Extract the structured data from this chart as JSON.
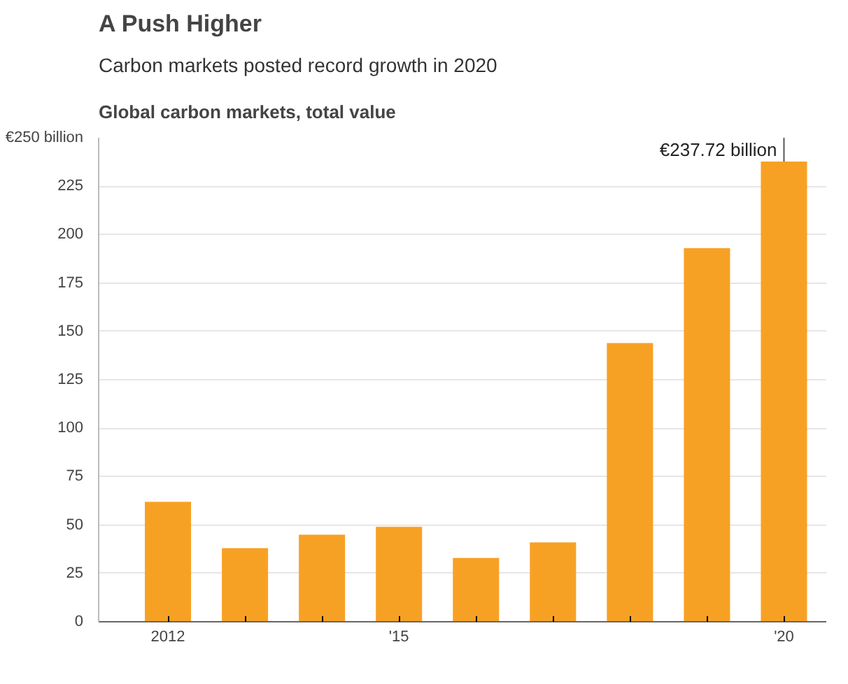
{
  "chart_data": {
    "type": "bar",
    "title": "A Push Higher",
    "subtitle": "Carbon markets posted record growth in 2020",
    "ylabel": "Global carbon markets, total value",
    "categories": [
      "2012",
      null,
      null,
      "'15",
      null,
      null,
      null,
      null,
      "'20"
    ],
    "values": [
      62,
      38,
      45,
      49,
      33,
      41,
      144,
      193,
      237.72
    ],
    "color": "#f7a124",
    "ylim": [
      0,
      250
    ],
    "yticks": [
      0,
      25,
      50,
      75,
      100,
      125,
      150,
      175,
      200,
      225,
      {
        "value": 250,
        "label": "€250 billion"
      }
    ],
    "grid": "y",
    "annotations": [
      {
        "text": "€237.72 billion",
        "x": "'20",
        "y": 237.72
      }
    ]
  }
}
